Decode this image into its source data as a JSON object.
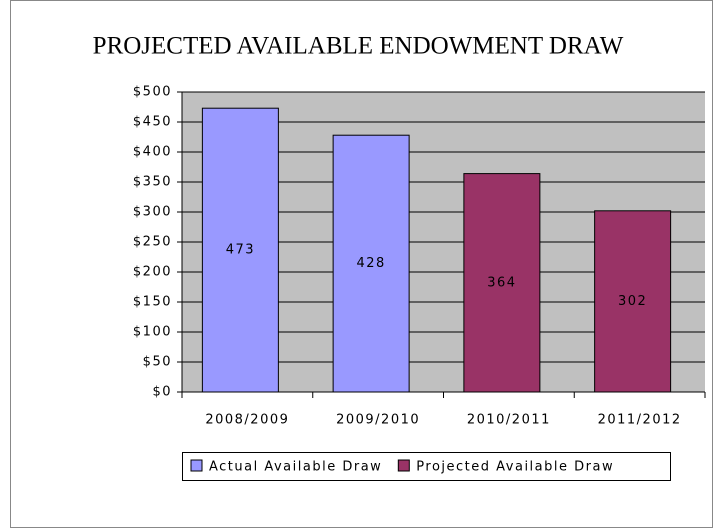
{
  "chart_data": {
    "type": "bar",
    "title": "PROJECTED AVAILABLE ENDOWMENT DRAW",
    "categories": [
      "2008/2009",
      "2009/2010",
      "2010/2011",
      "2011/2012"
    ],
    "series": [
      {
        "name": "Actual Available Draw",
        "color": "#9999ff",
        "values": [
          473,
          428,
          null,
          null
        ]
      },
      {
        "name": "Projected Available Draw",
        "color": "#993366",
        "values": [
          null,
          null,
          364,
          302
        ]
      }
    ],
    "ylim": [
      0,
      500
    ],
    "yticks": [
      {
        "value": 0,
        "label": "$0"
      },
      {
        "value": 50,
        "label": "$50"
      },
      {
        "value": 100,
        "label": "$100"
      },
      {
        "value": 150,
        "label": "$150"
      },
      {
        "value": 200,
        "label": "$200"
      },
      {
        "value": 250,
        "label": "$250"
      },
      {
        "value": 300,
        "label": "$300"
      },
      {
        "value": 350,
        "label": "$350"
      },
      {
        "value": 400,
        "label": "$400"
      },
      {
        "value": 450,
        "label": "$450"
      },
      {
        "value": 500,
        "label": "$500"
      }
    ],
    "grid": true,
    "plot_background": "#c0c0c0",
    "legend": "bottom"
  }
}
